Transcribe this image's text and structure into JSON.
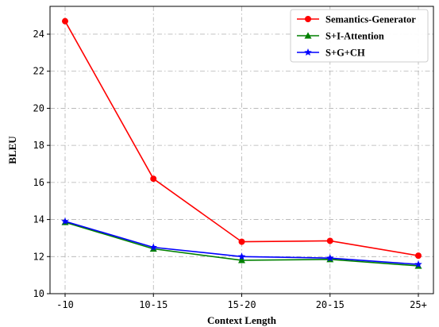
{
  "chart_data": {
    "type": "line",
    "title": "",
    "xlabel": "Context Length",
    "ylabel": "BLEU",
    "categories": [
      "-10",
      "10-15",
      "15-20",
      "20-15",
      "25+"
    ],
    "ylim": [
      10,
      25.5
    ],
    "yticks": [
      10,
      12,
      14,
      16,
      18,
      20,
      22,
      24
    ],
    "grid": true,
    "legend_position": "top-right",
    "series": [
      {
        "name": "Semantics-Generator",
        "color": "#ff0000",
        "marker": "circle",
        "values": [
          24.7,
          16.2,
          12.8,
          12.85,
          12.05
        ]
      },
      {
        "name": "S+I-Attention",
        "color": "#008000",
        "marker": "triangle",
        "values": [
          13.85,
          12.42,
          11.8,
          11.85,
          11.5
        ]
      },
      {
        "name": "S+G+CH",
        "color": "#0000ff",
        "marker": "star",
        "values": [
          13.9,
          12.5,
          12.0,
          11.92,
          11.58
        ]
      }
    ]
  }
}
